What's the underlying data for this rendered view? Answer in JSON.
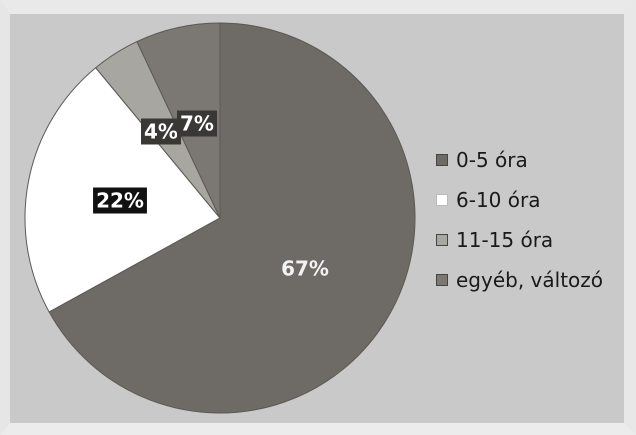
{
  "chart_data": {
    "type": "pie",
    "title": "",
    "slices": [
      {
        "label": "0-5 óra",
        "value": 67,
        "display": "67%",
        "color": "#6e6a65"
      },
      {
        "label": "6-10 óra",
        "value": 22,
        "display": "22%",
        "color": "#ffffff"
      },
      {
        "label": "11-15 óra",
        "value": 4,
        "display": "4%",
        "color": "#a8a6a0"
      },
      {
        "label": "egyéb, változó",
        "value": 7,
        "display": "7%",
        "color": "#7b7873"
      }
    ],
    "legend_position": "right",
    "start_angle_deg": 0,
    "direction": "clockwise"
  }
}
